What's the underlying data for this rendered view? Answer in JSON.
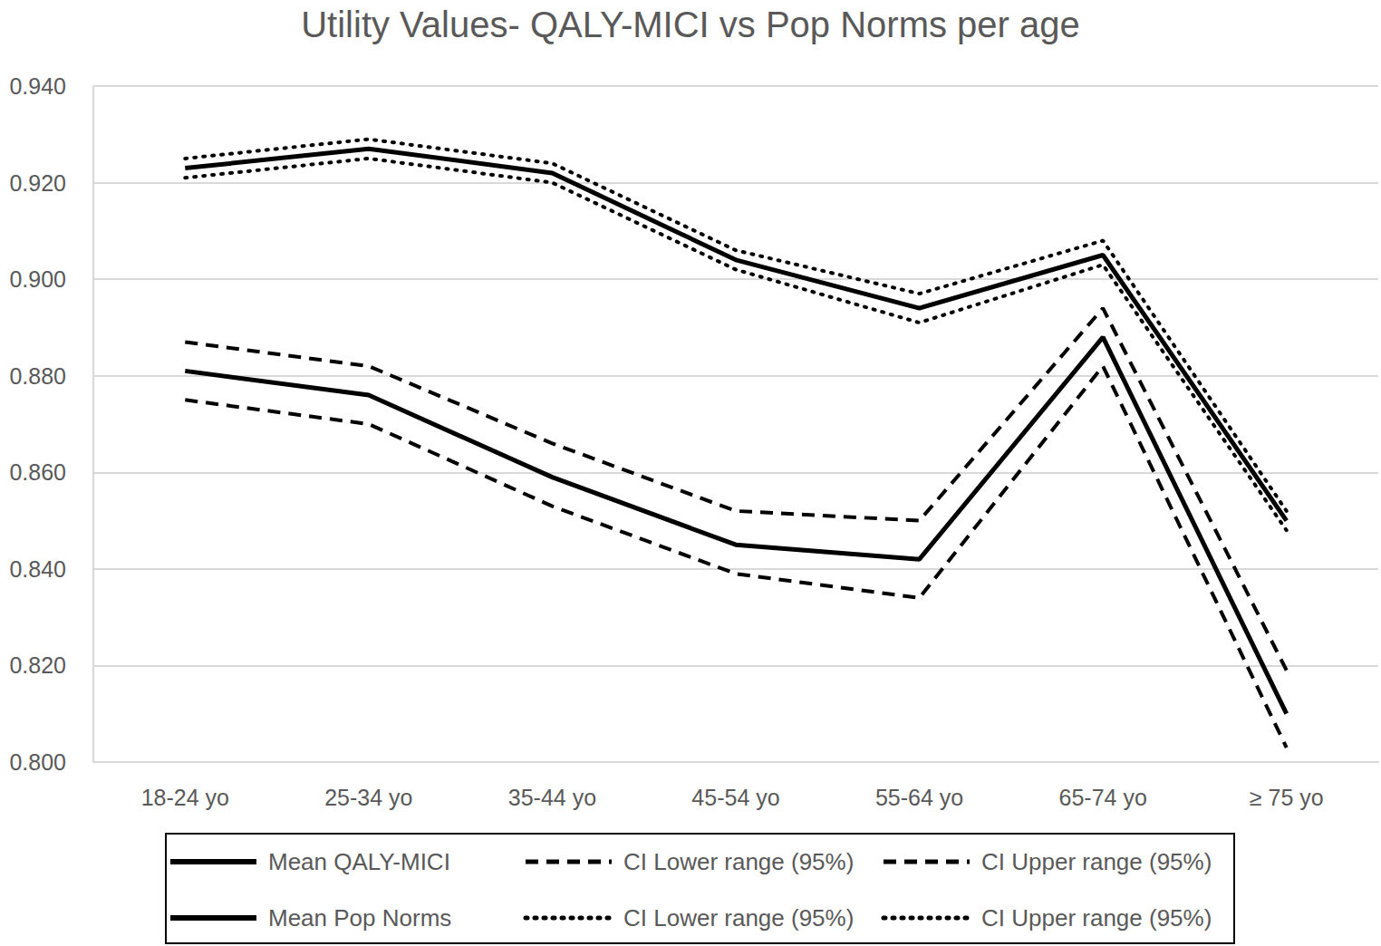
{
  "chart_data": {
    "type": "line",
    "title": "Utility Values- QALY-MICI vs Pop Norms per age",
    "categories": [
      "18-24 yo",
      "25-34 yo",
      "35-44 yo",
      "45-54 yo",
      "55-64 yo",
      "65-74 yo",
      "≥ 75 yo"
    ],
    "series": [
      {
        "name": "Mean QALY-MICI",
        "color": "#000000",
        "line_style": "solid",
        "values": [
          0.881,
          0.876,
          0.859,
          0.845,
          0.842,
          0.888,
          0.81
        ]
      },
      {
        "name": "CI Lower range (95%)",
        "color": "#000000",
        "line_style": "dashed",
        "values": [
          0.875,
          0.87,
          0.853,
          0.839,
          0.834,
          0.882,
          0.803
        ]
      },
      {
        "name": "CI Upper range (95%)",
        "color": "#000000",
        "line_style": "dashed",
        "values": [
          0.887,
          0.882,
          0.866,
          0.852,
          0.85,
          0.894,
          0.819
        ]
      },
      {
        "name": "Mean Pop Norms",
        "color": "#000000",
        "line_style": "solid",
        "values": [
          0.923,
          0.927,
          0.922,
          0.904,
          0.894,
          0.905,
          0.85
        ]
      },
      {
        "name": "CI Lower range (95%)",
        "color": "#000000",
        "line_style": "dotted",
        "values": [
          0.921,
          0.925,
          0.92,
          0.902,
          0.891,
          0.903,
          0.848
        ]
      },
      {
        "name": "CI Upper range (95%)",
        "color": "#000000",
        "line_style": "dotted",
        "values": [
          0.925,
          0.929,
          0.924,
          0.906,
          0.897,
          0.908,
          0.852
        ]
      }
    ],
    "ylim": [
      0.8,
      0.94
    ],
    "yticks": [
      {
        "value": 0.8,
        "label": "0.800"
      },
      {
        "value": 0.82,
        "label": "0.820"
      },
      {
        "value": 0.84,
        "label": "0.840"
      },
      {
        "value": 0.86,
        "label": "0.860"
      },
      {
        "value": 0.88,
        "label": "0.880"
      },
      {
        "value": 0.9,
        "label": "0.900"
      },
      {
        "value": 0.92,
        "label": "0.920"
      },
      {
        "value": 0.94,
        "label": "0.940"
      }
    ],
    "grid": true,
    "legend": "bottom"
  }
}
